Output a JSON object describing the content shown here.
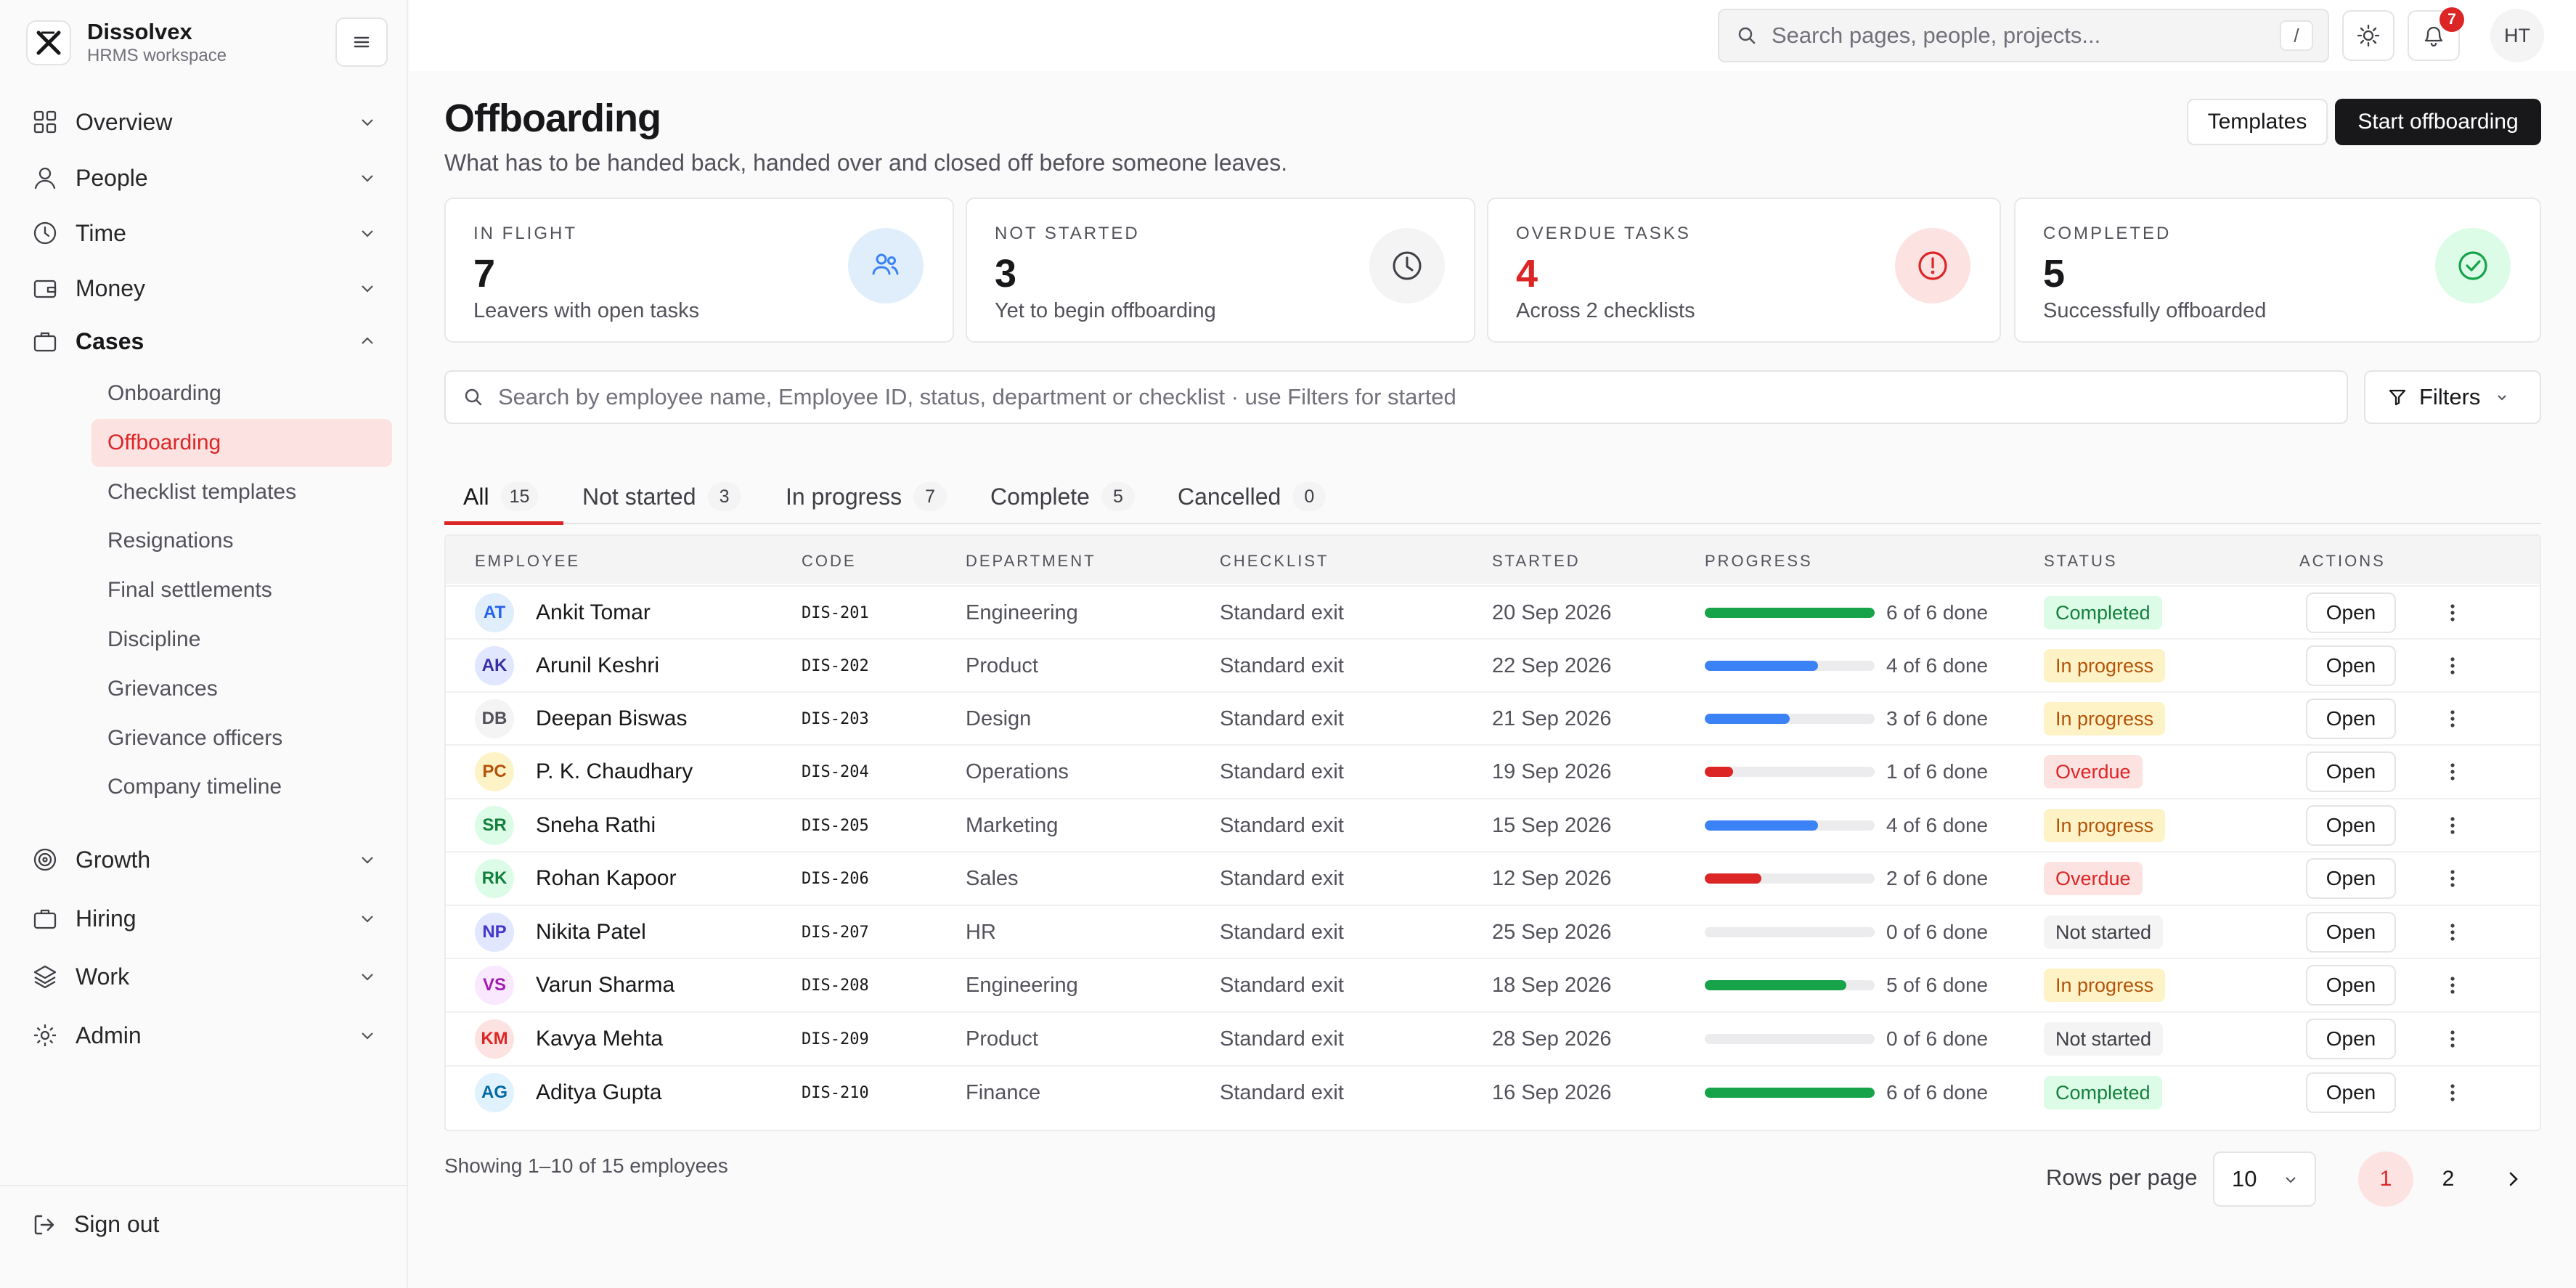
{
  "brand": {
    "name": "Dissolvex",
    "subtitle": "HRMS workspace"
  },
  "nav": {
    "items": [
      {
        "label": "Overview",
        "icon": "grid-icon",
        "expanded": false
      },
      {
        "label": "People",
        "icon": "user-icon",
        "expanded": false
      },
      {
        "label": "Time",
        "icon": "clock-icon",
        "expanded": false
      },
      {
        "label": "Money",
        "icon": "wallet-icon",
        "expanded": false
      },
      {
        "label": "Cases",
        "icon": "briefcase-icon",
        "expanded": true
      },
      {
        "label": "Growth",
        "icon": "target-icon",
        "expanded": false
      },
      {
        "label": "Hiring",
        "icon": "briefcase-icon",
        "expanded": false
      },
      {
        "label": "Work",
        "icon": "layers-icon",
        "expanded": false
      },
      {
        "label": "Admin",
        "icon": "gear-icon",
        "expanded": false
      }
    ],
    "cases_sub": [
      "Onboarding",
      "Offboarding",
      "Checklist templates",
      "Resignations",
      "Final settlements",
      "Discipline",
      "Grievances",
      "Grievance officers",
      "Company timeline"
    ],
    "active_sub": "Offboarding",
    "sign_out": "Sign out"
  },
  "topbar": {
    "search_placeholder": "Search pages, people, projects...",
    "search_shortcut": "/",
    "notification_count": "7",
    "user_initials": "HT"
  },
  "header": {
    "title": "Offboarding",
    "subtitle": "What has to be handed back, handed over and closed off before someone leaves.",
    "templates_label": "Templates",
    "start_label": "Start offboarding"
  },
  "stats": [
    {
      "label": "IN FLIGHT",
      "value": "7",
      "desc": "Leavers with open tasks",
      "accent": "#3b82f6",
      "value_color": "#18181b"
    },
    {
      "label": "NOT STARTED",
      "value": "3",
      "desc": "Yet to begin offboarding",
      "accent": "#3f3f46",
      "value_color": "#18181b"
    },
    {
      "label": "OVERDUE TASKS",
      "value": "4",
      "desc": "Across 2 checklists",
      "accent": "#dc2626",
      "value_color": "#dc2626"
    },
    {
      "label": "COMPLETED",
      "value": "5",
      "desc": "Successfully offboarded",
      "accent": "#16a34a",
      "value_color": "#18181b"
    }
  ],
  "filterbar": {
    "search_placeholder": "Search by employee name, Employee ID, status, department or checklist · use Filters for started",
    "filters_label": "Filters"
  },
  "tabs": [
    {
      "label": "All",
      "count": "15",
      "active": true
    },
    {
      "label": "Not started",
      "count": "3"
    },
    {
      "label": "In progress",
      "count": "7"
    },
    {
      "label": "Complete",
      "count": "5"
    },
    {
      "label": "Cancelled",
      "count": "0"
    }
  ],
  "table": {
    "columns": [
      "EMPLOYEE",
      "CODE",
      "DEPARTMENT",
      "CHECKLIST",
      "STARTED",
      "PROGRESS",
      "STATUS",
      "ACTIONS"
    ],
    "open_label": "Open",
    "rows": [
      {
        "initials": "AT",
        "name": "Ankit Tomar",
        "code": "DIS-201",
        "dept": "Engineering",
        "checklist": "Standard exit",
        "started": "20 Sep 2026",
        "done": 6,
        "total": 6,
        "progress": "6 of 6 done",
        "status": "Completed"
      },
      {
        "initials": "AK",
        "name": "Arunil Keshri",
        "code": "DIS-202",
        "dept": "Product",
        "checklist": "Standard exit",
        "started": "22 Sep 2026",
        "done": 4,
        "total": 6,
        "progress": "4 of 6 done",
        "status": "In progress"
      },
      {
        "initials": "DB",
        "name": "Deepan Biswas",
        "code": "DIS-203",
        "dept": "Design",
        "checklist": "Standard exit",
        "started": "21 Sep 2026",
        "done": 3,
        "total": 6,
        "progress": "3 of 6 done",
        "status": "In progress"
      },
      {
        "initials": "PC",
        "name": "P. K. Chaudhary",
        "code": "DIS-204",
        "dept": "Operations",
        "checklist": "Standard exit",
        "started": "19 Sep 2026",
        "done": 1,
        "total": 6,
        "progress": "1 of 6 done",
        "status": "Overdue"
      },
      {
        "initials": "SR",
        "name": "Sneha Rathi",
        "code": "DIS-205",
        "dept": "Marketing",
        "checklist": "Standard exit",
        "started": "15 Sep 2026",
        "done": 4,
        "total": 6,
        "progress": "4 of 6 done",
        "status": "In progress"
      },
      {
        "initials": "RK",
        "name": "Rohan Kapoor",
        "code": "DIS-206",
        "dept": "Sales",
        "checklist": "Standard exit",
        "started": "12 Sep 2026",
        "done": 2,
        "total": 6,
        "progress": "2 of 6 done",
        "status": "Overdue"
      },
      {
        "initials": "NP",
        "name": "Nikita Patel",
        "code": "DIS-207",
        "dept": "HR",
        "checklist": "Standard exit",
        "started": "25 Sep 2026",
        "done": 0,
        "total": 6,
        "progress": "0 of 6 done",
        "status": "Not started"
      },
      {
        "initials": "VS",
        "name": "Varun Sharma",
        "code": "DIS-208",
        "dept": "Engineering",
        "checklist": "Standard exit",
        "started": "18 Sep 2026",
        "done": 5,
        "total": 6,
        "progress": "5 of 6 done",
        "status": "In progress"
      },
      {
        "initials": "KM",
        "name": "Kavya Mehta",
        "code": "DIS-209",
        "dept": "Product",
        "checklist": "Standard exit",
        "started": "28 Sep 2026",
        "done": 0,
        "total": 6,
        "progress": "0 of 6 done",
        "status": "Not started"
      },
      {
        "initials": "AG",
        "name": "Aditya Gupta",
        "code": "DIS-210",
        "dept": "Finance",
        "checklist": "Standard exit",
        "started": "16 Sep 2026",
        "done": 6,
        "total": 6,
        "progress": "6 of 6 done",
        "status": "Completed"
      }
    ]
  },
  "footer": {
    "showing": "Showing 1–10 of 15 employees",
    "rows_per_page_label": "Rows per page",
    "rows_per_page": "10",
    "pages": [
      "1",
      "2"
    ],
    "current_page": "1"
  },
  "colors": {
    "accent": "#dc2626",
    "progress_complete": "#16a34a",
    "progress_partial": "#3b82f6",
    "progress_overdue": "#dc2626"
  }
}
